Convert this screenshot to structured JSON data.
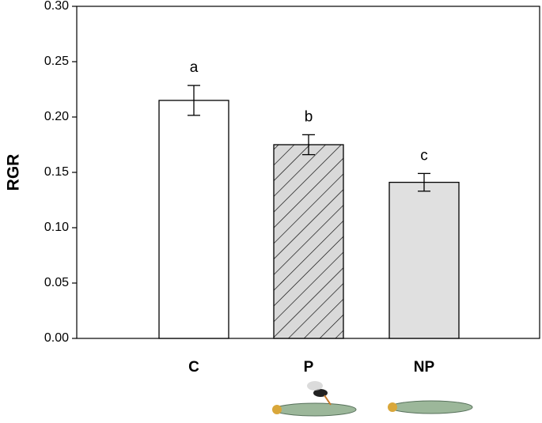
{
  "chart_data": {
    "type": "bar",
    "y_label": "RGR",
    "categories": [
      "C",
      "P",
      "NP"
    ],
    "values": [
      0.215,
      0.175,
      0.141
    ],
    "errors": [
      0.0135,
      0.009,
      0.008
    ],
    "annotations": [
      "a",
      "b",
      "c"
    ],
    "colors": [
      "#ffffff",
      "#d9d9d9",
      "#e0e0e0"
    ],
    "hatch": [
      false,
      true,
      false
    ],
    "ylim": [
      0,
      0.3
    ],
    "yticks": [
      {
        "value": 0,
        "label": "0.00"
      },
      0.05,
      {
        "value": 0.1,
        "label": "0.10"
      },
      0.15,
      {
        "value": 0.2,
        "label": "0.20"
      },
      0.25,
      {
        "value": 0.3,
        "label": "0.30"
      }
    ],
    "grid": false
  }
}
